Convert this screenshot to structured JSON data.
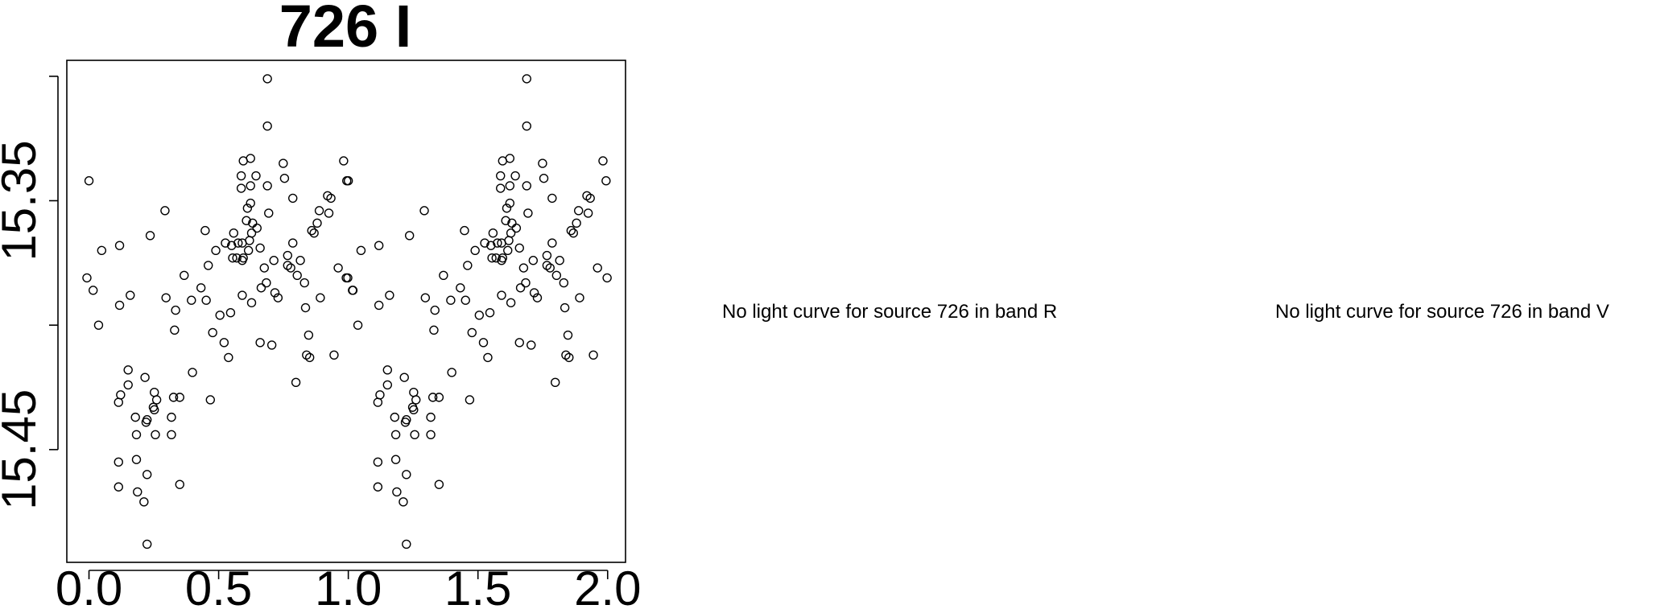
{
  "chart_data": {
    "type": "scatter",
    "title": "726 I",
    "x": [
      0.0,
      -0.008,
      0.016,
      0.037,
      0.049,
      0.118,
      0.118,
      0.122,
      0.114,
      0.114,
      0.114,
      0.151,
      0.151,
      0.159,
      0.179,
      0.183,
      0.183,
      0.187,
      0.212,
      0.216,
      0.22,
      0.224,
      0.224,
      0.224,
      0.236,
      0.248,
      0.252,
      0.252,
      0.256,
      0.261,
      0.293,
      0.297,
      0.318,
      0.318,
      0.326,
      0.33,
      0.334,
      0.35,
      0.35,
      0.367,
      0.395,
      0.399,
      0.432,
      0.448,
      0.452,
      0.46,
      0.468,
      0.477,
      0.489,
      0.505,
      0.521,
      0.526,
      0.538,
      0.546,
      0.55,
      0.558,
      0.554,
      0.57,
      0.575,
      0.587,
      0.587,
      0.591,
      0.591,
      0.591,
      0.595,
      0.595,
      0.607,
      0.611,
      0.615,
      0.619,
      0.623,
      0.623,
      0.623,
      0.627,
      0.627,
      0.631,
      0.644,
      0.648,
      0.66,
      0.66,
      0.664,
      0.676,
      0.684,
      0.688,
      0.688,
      0.688,
      0.693,
      0.705,
      0.713,
      0.717,
      0.729,
      0.749,
      0.754,
      0.766,
      0.766,
      0.778,
      0.786,
      0.786,
      0.798,
      0.803,
      0.815,
      0.831,
      0.835,
      0.839,
      0.847,
      0.851,
      0.859,
      0.868,
      0.88,
      0.888,
      0.892,
      0.92,
      0.925,
      0.933,
      0.945,
      0.961,
      0.982,
      0.994,
      0.998,
      1.018,
      1.0,
      0.992,
      1.016,
      1.037,
      1.049,
      1.118,
      1.118,
      1.122,
      1.114,
      1.114,
      1.114,
      1.151,
      1.151,
      1.159,
      1.179,
      1.183,
      1.183,
      1.187,
      1.212,
      1.216,
      1.22,
      1.224,
      1.224,
      1.224,
      1.236,
      1.248,
      1.252,
      1.252,
      1.256,
      1.261,
      1.293,
      1.297,
      1.318,
      1.318,
      1.326,
      1.33,
      1.334,
      1.35,
      1.35,
      1.367,
      1.395,
      1.399,
      1.432,
      1.448,
      1.452,
      1.46,
      1.468,
      1.477,
      1.489,
      1.505,
      1.521,
      1.526,
      1.538,
      1.546,
      1.55,
      1.558,
      1.554,
      1.57,
      1.575,
      1.587,
      1.587,
      1.591,
      1.591,
      1.591,
      1.595,
      1.595,
      1.607,
      1.611,
      1.615,
      1.619,
      1.623,
      1.623,
      1.623,
      1.627,
      1.627,
      1.631,
      1.644,
      1.648,
      1.66,
      1.66,
      1.664,
      1.676,
      1.684,
      1.688,
      1.688,
      1.688,
      1.693,
      1.705,
      1.713,
      1.717,
      1.729,
      1.749,
      1.754,
      1.766,
      1.766,
      1.778,
      1.786,
      1.786,
      1.798,
      1.803,
      1.815,
      1.831,
      1.835,
      1.839,
      1.847,
      1.851,
      1.859,
      1.868,
      1.88,
      1.888,
      1.892,
      1.92,
      1.925,
      1.933,
      1.945,
      1.961,
      1.982,
      1.994,
      1.998
    ],
    "y": [
      15.342,
      15.381,
      15.386,
      15.4,
      15.37,
      15.368,
      15.392,
      15.428,
      15.431,
      15.455,
      15.465,
      15.418,
      15.424,
      15.388,
      15.437,
      15.454,
      15.444,
      15.467,
      15.471,
      15.421,
      15.439,
      15.438,
      15.46,
      15.488,
      15.364,
      15.433,
      15.427,
      15.434,
      15.444,
      15.43,
      15.354,
      15.389,
      15.437,
      15.444,
      15.429,
      15.402,
      15.394,
      15.429,
      15.464,
      15.38,
      15.39,
      15.419,
      15.385,
      15.362,
      15.39,
      15.376,
      15.43,
      15.403,
      15.37,
      15.396,
      15.407,
      15.367,
      15.413,
      15.395,
      15.368,
      15.363,
      15.373,
      15.373,
      15.367,
      15.34,
      15.345,
      15.367,
      15.374,
      15.388,
      15.334,
      15.373,
      15.358,
      15.353,
      15.37,
      15.366,
      15.333,
      15.344,
      15.351,
      15.391,
      15.363,
      15.359,
      15.34,
      15.361,
      15.369,
      15.407,
      15.385,
      15.377,
      15.383,
      15.301,
      15.32,
      15.344,
      15.355,
      15.408,
      15.374,
      15.387,
      15.389,
      15.335,
      15.341,
      15.372,
      15.376,
      15.377,
      15.349,
      15.367,
      15.423,
      15.38,
      15.374,
      15.383,
      15.393,
      15.412,
      15.404,
      15.413,
      15.362,
      15.363,
      15.359,
      15.354,
      15.389,
      15.348,
      15.355,
      15.349,
      15.412,
      15.377,
      15.334,
      15.342,
      15.381,
      15.386,
      15.342,
      15.381,
      15.386,
      15.4,
      15.37,
      15.368,
      15.392,
      15.428,
      15.431,
      15.455,
      15.465,
      15.418,
      15.424,
      15.388,
      15.437,
      15.454,
      15.444,
      15.467,
      15.471,
      15.421,
      15.439,
      15.438,
      15.46,
      15.488,
      15.364,
      15.433,
      15.427,
      15.434,
      15.444,
      15.43,
      15.354,
      15.389,
      15.437,
      15.444,
      15.429,
      15.402,
      15.394,
      15.429,
      15.464,
      15.38,
      15.39,
      15.419,
      15.385,
      15.362,
      15.39,
      15.376,
      15.43,
      15.403,
      15.37,
      15.396,
      15.407,
      15.367,
      15.413,
      15.395,
      15.368,
      15.363,
      15.373,
      15.373,
      15.367,
      15.34,
      15.345,
      15.367,
      15.374,
      15.388,
      15.334,
      15.373,
      15.358,
      15.353,
      15.37,
      15.366,
      15.333,
      15.344,
      15.351,
      15.391,
      15.363,
      15.359,
      15.34,
      15.361,
      15.369,
      15.407,
      15.385,
      15.377,
      15.383,
      15.301,
      15.32,
      15.344,
      15.355,
      15.408,
      15.374,
      15.387,
      15.389,
      15.335,
      15.341,
      15.372,
      15.376,
      15.377,
      15.349,
      15.367,
      15.423,
      15.38,
      15.374,
      15.383,
      15.393,
      15.412,
      15.404,
      15.413,
      15.362,
      15.363,
      15.359,
      15.354,
      15.389,
      15.348,
      15.355,
      15.349,
      15.412,
      15.377,
      15.334,
      15.342,
      15.381
    ],
    "xlim": [
      -0.0855,
      2.069
    ],
    "xticks": [
      {
        "value": 0,
        "label": "0.0"
      },
      0.5,
      {
        "value": 1,
        "label": "1.0"
      },
      1.5,
      {
        "value": 2,
        "label": "2.0"
      }
    ],
    "ylim": [
      15.4953,
      15.2936
    ],
    "yticks": [
      15.35,
      15.45
    ],
    "unlabeled_yticks": [
      15.3,
      15.4
    ],
    "color": "#000000"
  },
  "panels": [
    {
      "message": "No light curve for source 726 in band R"
    },
    {
      "message": "No light curve for source 726 in band V"
    }
  ]
}
